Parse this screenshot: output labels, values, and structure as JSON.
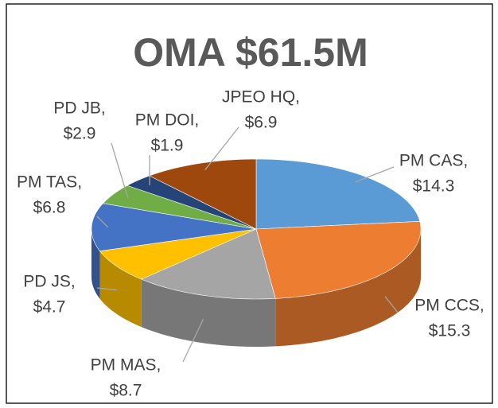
{
  "chart_data": {
    "type": "pie3d",
    "title": "OMA $61.5M",
    "categories": [
      "PM CAS,",
      "PM CCS,",
      "PM MAS,",
      "PD JS,",
      "PM TAS,",
      "PD JB,",
      "PM DOI,",
      "JPEO HQ,"
    ],
    "values": [
      14.3,
      15.3,
      8.7,
      4.7,
      6.8,
      2.9,
      1.9,
      6.9
    ],
    "value_labels": [
      "$14.3",
      "$15.3",
      "$8.7",
      "$4.7",
      "$6.8",
      "$2.9",
      "$1.9",
      "$6.9"
    ],
    "colors": [
      "#5b9bd5",
      "#ed7d31",
      "#a5a5a5",
      "#ffc000",
      "#4472c4",
      "#70ad47",
      "#264478",
      "#9e480e"
    ]
  }
}
